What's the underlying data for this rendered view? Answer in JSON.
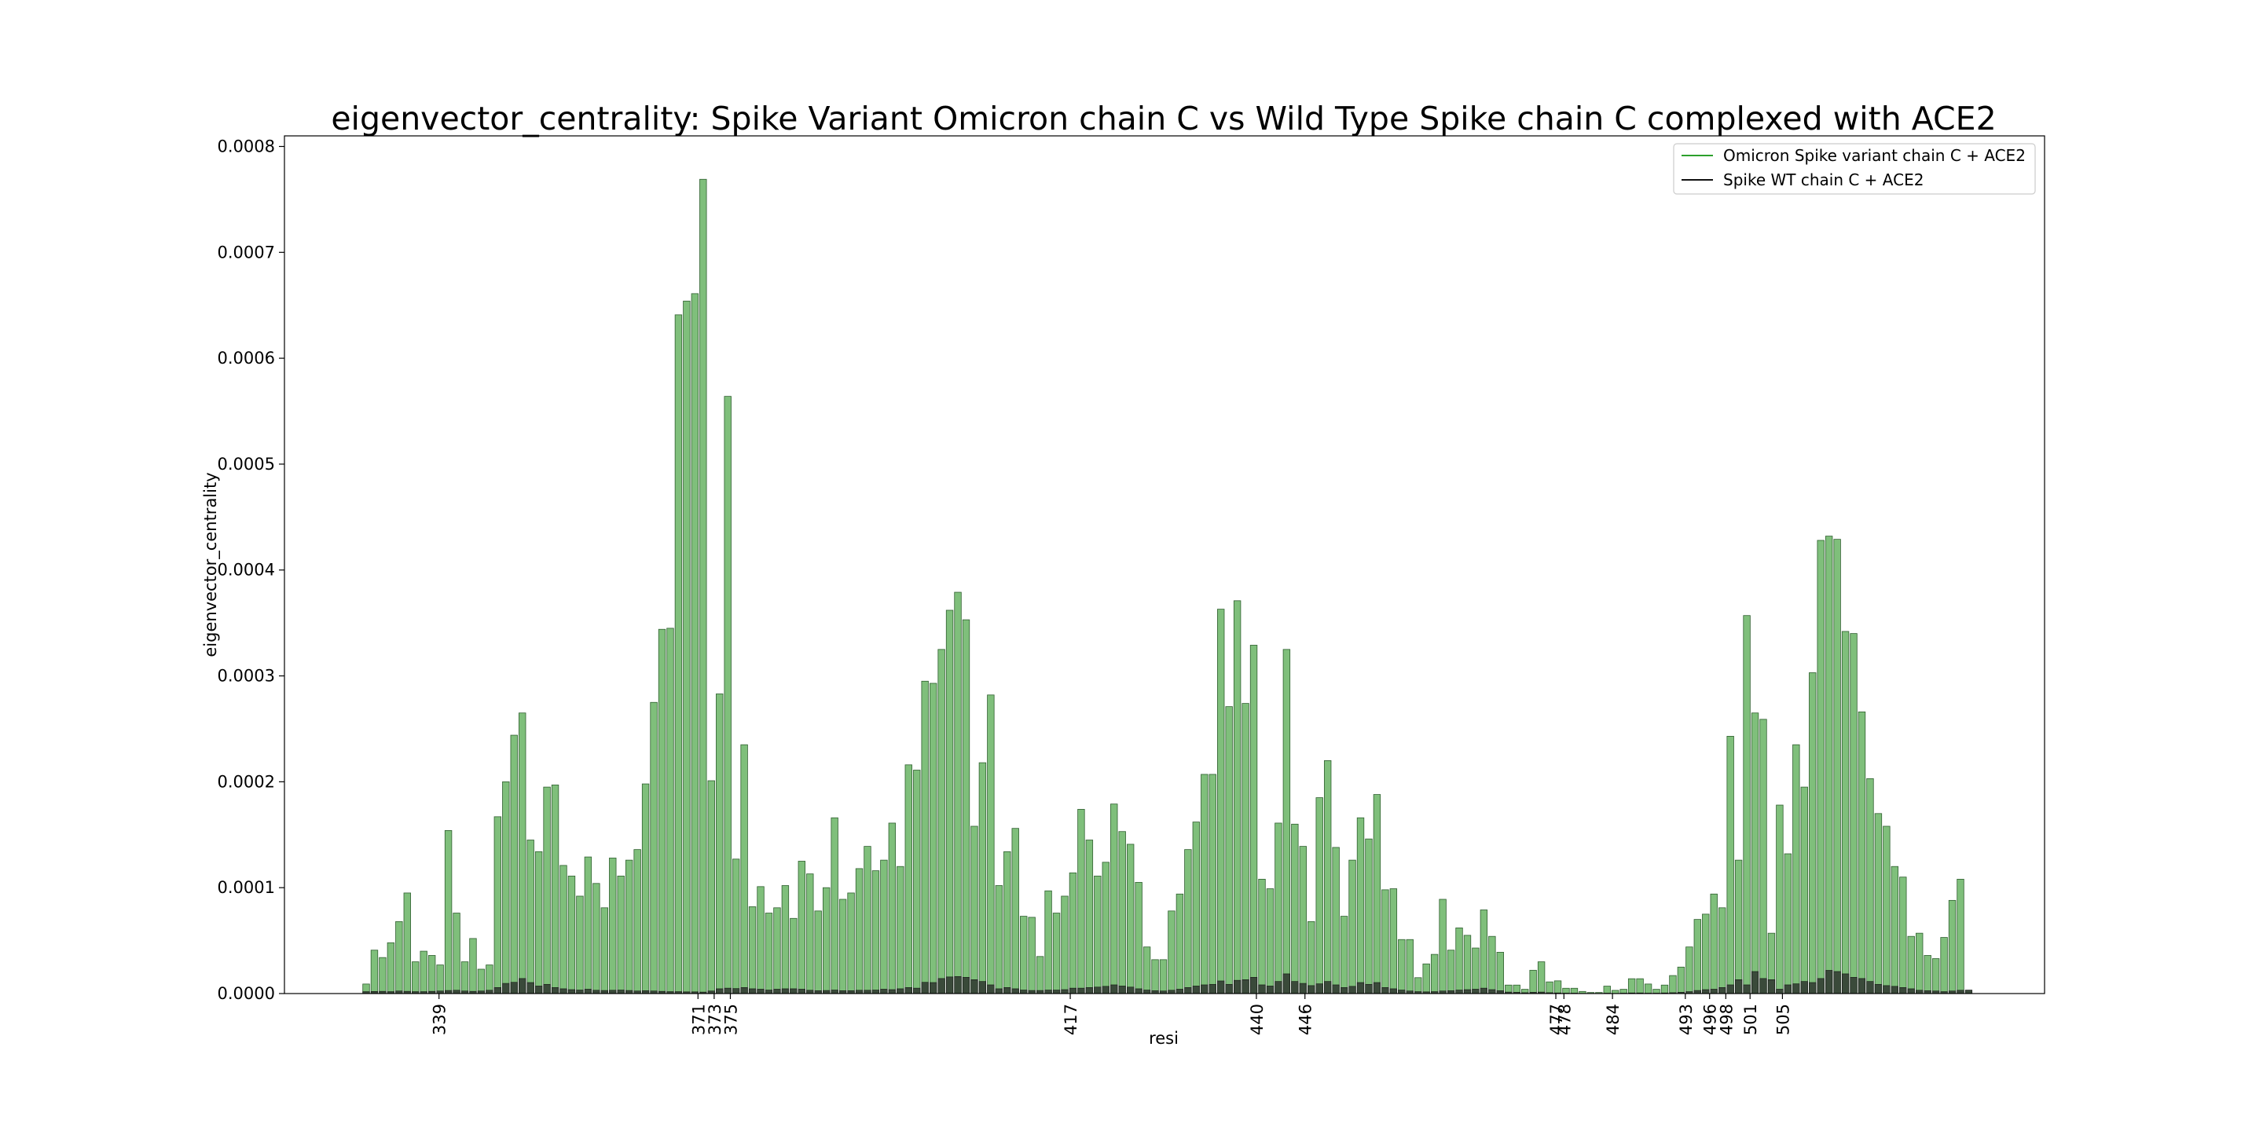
{
  "chart_data": {
    "type": "bar",
    "title": "eigenvector_centrality: Spike Variant Omicron chain C vs Wild Type Spike chain C complexed with ACE2",
    "xlabel": "resi",
    "ylabel": "eigenvector_centrality",
    "ylim": [
      0,
      0.00081
    ],
    "yticks": [
      "0.0000",
      "0.0001",
      "0.0002",
      "0.0003",
      "0.0004",
      "0.0005",
      "0.0006",
      "0.0007",
      "0.0008"
    ],
    "ytick_values": [
      0,
      0.0001,
      0.0002,
      0.0003,
      0.0004,
      0.0005,
      0.0006,
      0.0007,
      0.0008
    ],
    "xtick_labels": [
      "339",
      "371",
      "373",
      "375",
      "417",
      "440",
      "446",
      "477",
      "478",
      "484",
      "493",
      "496",
      "498",
      "501",
      "505"
    ],
    "xtick_residues": [
      339,
      371,
      373,
      375,
      417,
      440,
      446,
      477,
      478,
      484,
      493,
      496,
      498,
      501,
      505
    ],
    "resi_start": 330,
    "resi_end": 527,
    "legend_position": "upper right",
    "grid": false,
    "series": [
      {
        "name": "Omicron Spike variant chain C + ACE2",
        "color": "#2ca02c",
        "bar_fill": "#7fbf7b",
        "values": [
          9e-06,
          4.1e-05,
          3.4e-05,
          4.8e-05,
          6.8e-05,
          9.5e-05,
          3e-05,
          4e-05,
          3.6e-05,
          2.7e-05,
          0.000154,
          7.6e-05,
          3e-05,
          5.2e-05,
          2.3e-05,
          2.7e-05,
          0.000167,
          0.0002,
          0.000244,
          0.000265,
          0.000145,
          0.000134,
          0.000195,
          0.000197,
          0.000121,
          0.000111,
          9.2e-05,
          0.000129,
          0.000104,
          8.1e-05,
          0.000128,
          0.000111,
          0.000126,
          0.000136,
          0.000198,
          0.000275,
          0.000344,
          0.000345,
          0.000641,
          0.000654,
          0.000661,
          0.000769,
          0.000201,
          0.000283,
          0.000564,
          0.000127,
          0.000235,
          8.2e-05,
          0.000101,
          7.6e-05,
          8.1e-05,
          0.000102,
          7.1e-05,
          0.000125,
          0.000113,
          7.8e-05,
          0.0001,
          0.000166,
          8.9e-05,
          9.5e-05,
          0.000118,
          0.000139,
          0.000116,
          0.000126,
          0.000161,
          0.00012,
          0.000216,
          0.000211,
          0.000295,
          0.000293,
          0.000325,
          0.000362,
          0.000379,
          0.000353,
          0.000158,
          0.000218,
          0.000282,
          0.000102,
          0.000134,
          0.000156,
          7.3e-05,
          7.2e-05,
          3.5e-05,
          9.7e-05,
          7.6e-05,
          9.2e-05,
          0.000114,
          0.000174,
          0.000145,
          0.000111,
          0.000124,
          0.000179,
          0.000153,
          0.000141,
          0.000105,
          4.4e-05,
          3.2e-05,
          3.2e-05,
          7.8e-05,
          9.4e-05,
          0.000136,
          0.000162,
          0.000207,
          0.000207,
          0.000363,
          0.000271,
          0.000371,
          0.000274,
          0.000329,
          0.000108,
          9.9e-05,
          0.000161,
          0.000325,
          0.00016,
          0.000139,
          6.8e-05,
          0.000185,
          0.00022,
          0.000138,
          7.3e-05,
          0.000126,
          0.000166,
          0.000146,
          0.000188,
          9.8e-05,
          9.9e-05,
          5.1e-05,
          5.1e-05,
          1.5e-05,
          2.8e-05,
          3.7e-05,
          8.9e-05,
          4.1e-05,
          6.2e-05,
          5.5e-05,
          4.3e-05,
          7.9e-05,
          5.4e-05,
          3.9e-05,
          8e-06,
          8e-06,
          4e-06,
          2.2e-05,
          3e-05,
          1.1e-05,
          1.2e-05,
          5e-06,
          5e-06,
          2e-06,
          1e-06,
          1e-06,
          7e-06,
          3e-06,
          4e-06,
          1.4e-05,
          1.4e-05,
          9e-06,
          4e-06,
          8e-06,
          1.7e-05,
          2.5e-05,
          4.4e-05,
          7e-05,
          7.5e-05,
          9.4e-05,
          8.1e-05,
          0.000243,
          0.000126,
          0.000357,
          0.000265,
          0.000259,
          5.7e-05,
          0.000178,
          0.000132,
          0.000235,
          0.000195,
          0.000303,
          0.000428,
          0.000432,
          0.000429,
          0.000342,
          0.00034,
          0.000266,
          0.000203,
          0.00017,
          0.000158,
          0.00012,
          0.00011,
          5.4e-05,
          5.7e-05,
          3.6e-05,
          3.3e-05,
          5.3e-05,
          8.8e-05,
          0.000108
        ]
      },
      {
        "name": "Spike WT chain C + ACE2",
        "color": "#111111",
        "bar_fill": "#3a4a3a",
        "values": [
          1.8e-06,
          2e-06,
          2.1e-06,
          1.8e-06,
          2.4e-06,
          2.1e-06,
          1.8e-06,
          1.8e-06,
          2.1e-06,
          2.4e-06,
          2.9e-06,
          3.1e-06,
          2.4e-06,
          2.1e-06,
          2.4e-06,
          3.1e-06,
          5.7e-06,
          9.6e-06,
          1.06e-05,
          1.42e-05,
          1.04e-05,
          7.1e-06,
          8.7e-06,
          5.7e-06,
          4.5e-06,
          3.7e-06,
          3.3e-06,
          4.1e-06,
          3.1e-06,
          2.9e-06,
          3.1e-06,
          3.3e-06,
          2.9e-06,
          2.4e-06,
          2.7e-06,
          2.4e-06,
          2.1e-06,
          1.8e-06,
          1.8e-06,
          1.6e-06,
          1.6e-06,
          1.4e-06,
          2.4e-06,
          4.5e-06,
          5.1e-06,
          4.7e-06,
          5.7e-06,
          4.5e-06,
          4.1e-06,
          3.3e-06,
          4.1e-06,
          4.5e-06,
          4.5e-06,
          4.1e-06,
          3.1e-06,
          2.7e-06,
          2.9e-06,
          3.3e-06,
          2.7e-06,
          2.7e-06,
          3.1e-06,
          3.1e-06,
          3.3e-06,
          4.1e-06,
          3.7e-06,
          4.5e-06,
          5.7e-06,
          5.1e-06,
          1.06e-05,
          1.04e-05,
          1.42e-05,
          1.57e-05,
          1.61e-05,
          1.53e-05,
          1.31e-05,
          1.14e-05,
          8.2e-06,
          4.5e-06,
          5.7e-06,
          4.5e-06,
          3.3e-06,
          2.9e-06,
          2.9e-06,
          3.3e-06,
          3.3e-06,
          3.7e-06,
          5.1e-06,
          5.1e-06,
          5.7e-06,
          6.1e-06,
          6.8e-06,
          8.2e-06,
          7.1e-06,
          6.1e-06,
          4.5e-06,
          3.3e-06,
          2.7e-06,
          2.4e-06,
          3.1e-06,
          4.1e-06,
          5.7e-06,
          7.1e-06,
          8.2e-06,
          8.7e-06,
          1.19e-05,
          8.7e-06,
          1.25e-05,
          1.31e-05,
          1.53e-05,
          8.2e-06,
          7.1e-06,
          1.14e-05,
          1.86e-05,
          1.14e-05,
          9.6e-06,
          7.5e-06,
          9.2e-06,
          1.14e-05,
          8.2e-06,
          5.7e-06,
          6.8e-06,
          1.04e-05,
          8.7e-06,
          1.04e-05,
          5.7e-06,
          4.5e-06,
          3.3e-06,
          2.4e-06,
          1.8e-06,
          1.6e-06,
          1.8e-06,
          2.4e-06,
          2.7e-06,
          3.3e-06,
          3.7e-06,
          4.1e-06,
          5.1e-06,
          3.7e-06,
          2.7e-06,
          1.4e-06,
          1.2e-06,
          8e-07,
          1.2e-06,
          1.4e-06,
          8e-07,
          6e-07,
          4e-07,
          4e-07,
          2e-07,
          2e-07,
          2e-07,
          4e-07,
          2e-07,
          4e-07,
          6e-07,
          6e-07,
          4e-07,
          4e-07,
          6e-07,
          8e-07,
          1.2e-06,
          1.8e-06,
          2.9e-06,
          3.7e-06,
          4.1e-06,
          5.7e-06,
          8.2e-06,
          1.31e-05,
          8.2e-06,
          2.08e-05,
          1.42e-05,
          1.31e-05,
          4.1e-06,
          8.2e-06,
          9.2e-06,
          1.14e-05,
          1.04e-05,
          1.42e-05,
          2.19e-05,
          2.08e-05,
          1.86e-05,
          1.53e-05,
          1.42e-05,
          1.14e-05,
          8.7e-06,
          7.5e-06,
          6.8e-06,
          5.7e-06,
          4.5e-06,
          3.1e-06,
          2.7e-06,
          2.4e-06,
          1.8e-06,
          2.4e-06,
          3.1e-06,
          3.3e-06
        ]
      }
    ]
  }
}
